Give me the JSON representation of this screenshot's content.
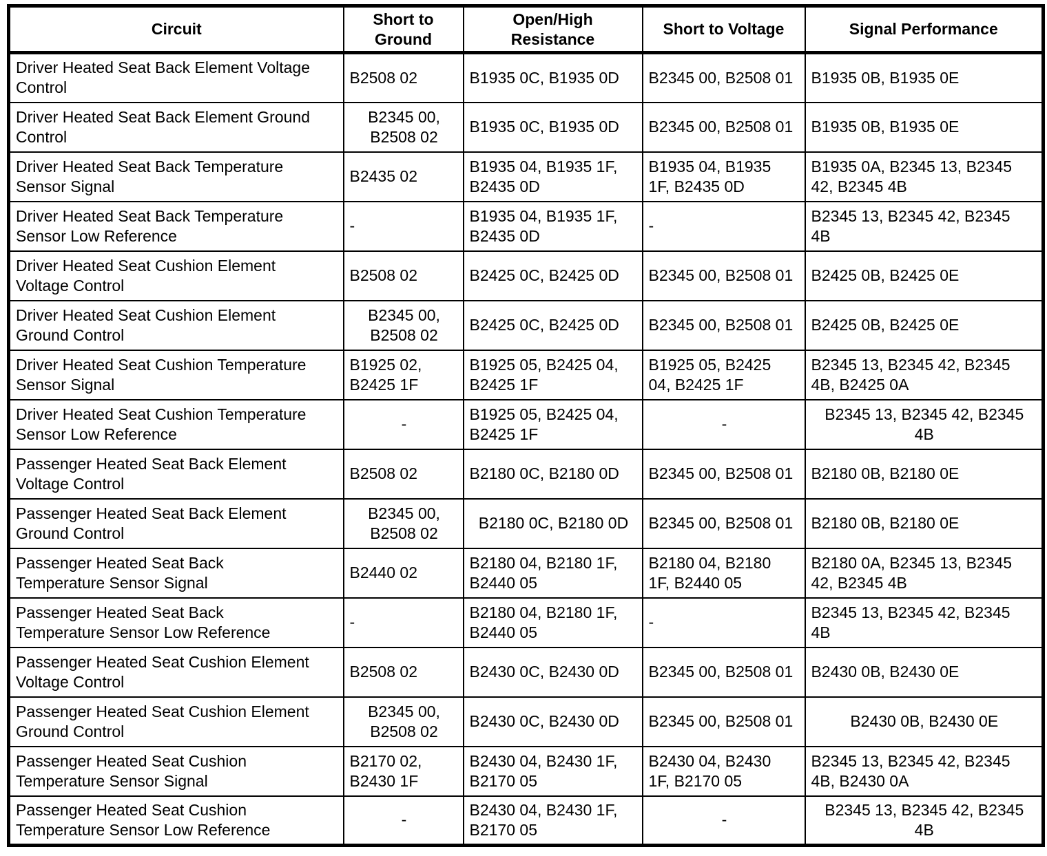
{
  "colors": {
    "background": "#ffffff",
    "border": "#000000",
    "text": "#000000"
  },
  "table": {
    "columns": [
      {
        "key": "circuit",
        "label": "Circuit"
      },
      {
        "key": "short_to_ground",
        "label": "Short to\nGround"
      },
      {
        "key": "open_high_resistance",
        "label": "Open/High\nResistance"
      },
      {
        "key": "short_to_voltage",
        "label": "Short to Voltage"
      },
      {
        "key": "signal_performance",
        "label": "Signal Performance"
      }
    ],
    "rows": [
      {
        "circuit": {
          "text": "Driver Heated Seat Back Element Voltage\nControl",
          "align": "left"
        },
        "short_to_ground": {
          "text": "B2508 02",
          "align": "left"
        },
        "open_high_resistance": {
          "text": "B1935 0C, B1935 0D",
          "align": "left"
        },
        "short_to_voltage": {
          "text": "B2345 00, B2508 01",
          "align": "left"
        },
        "signal_performance": {
          "text": "B1935 0B, B1935 0E",
          "align": "left"
        }
      },
      {
        "circuit": {
          "text": "Driver Heated Seat Back Element Ground\nControl",
          "align": "left"
        },
        "short_to_ground": {
          "text": "B2345 00,\nB2508 02",
          "align": "center"
        },
        "open_high_resistance": {
          "text": "B1935 0C, B1935 0D",
          "align": "left"
        },
        "short_to_voltage": {
          "text": "B2345 00, B2508 01",
          "align": "left"
        },
        "signal_performance": {
          "text": "B1935 0B, B1935 0E",
          "align": "left"
        }
      },
      {
        "circuit": {
          "text": "Driver Heated Seat Back Temperature\nSensor Signal",
          "align": "left"
        },
        "short_to_ground": {
          "text": "B2435 02",
          "align": "left"
        },
        "open_high_resistance": {
          "text": "B1935 04, B1935 1F,\nB2435 0D",
          "align": "left"
        },
        "short_to_voltage": {
          "text": "B1935 04, B1935\n1F, B2435 0D",
          "align": "left"
        },
        "signal_performance": {
          "text": "B1935 0A, B2345 13, B2345\n42, B2345 4B",
          "align": "left"
        }
      },
      {
        "circuit": {
          "text": "Driver Heated Seat Back Temperature\nSensor Low Reference",
          "align": "left"
        },
        "short_to_ground": {
          "text": "-",
          "align": "left"
        },
        "open_high_resistance": {
          "text": "B1935 04, B1935 1F,\nB2435 0D",
          "align": "left"
        },
        "short_to_voltage": {
          "text": "-",
          "align": "left"
        },
        "signal_performance": {
          "text": "B2345 13, B2345 42, B2345\n4B",
          "align": "left"
        }
      },
      {
        "circuit": {
          "text": "Driver Heated Seat Cushion Element\nVoltage Control",
          "align": "left"
        },
        "short_to_ground": {
          "text": "B2508 02",
          "align": "left"
        },
        "open_high_resistance": {
          "text": "B2425 0C, B2425 0D",
          "align": "left"
        },
        "short_to_voltage": {
          "text": "B2345 00, B2508 01",
          "align": "left"
        },
        "signal_performance": {
          "text": "B2425 0B, B2425 0E",
          "align": "left"
        }
      },
      {
        "circuit": {
          "text": "Driver Heated Seat Cushion Element\nGround Control",
          "align": "left"
        },
        "short_to_ground": {
          "text": "B2345 00,\nB2508 02",
          "align": "center"
        },
        "open_high_resistance": {
          "text": "B2425 0C, B2425 0D",
          "align": "left"
        },
        "short_to_voltage": {
          "text": "B2345 00, B2508 01",
          "align": "left"
        },
        "signal_performance": {
          "text": "B2425 0B, B2425 0E",
          "align": "left"
        }
      },
      {
        "circuit": {
          "text": "Driver Heated Seat Cushion Temperature\nSensor Signal",
          "align": "left"
        },
        "short_to_ground": {
          "text": "B1925 02,\nB2425 1F",
          "align": "left"
        },
        "open_high_resistance": {
          "text": "B1925 05, B2425 04,\nB2425 1F",
          "align": "left"
        },
        "short_to_voltage": {
          "text": "B1925 05, B2425\n04, B2425 1F",
          "align": "left"
        },
        "signal_performance": {
          "text": "B2345 13, B2345 42, B2345\n4B, B2425 0A",
          "align": "left"
        }
      },
      {
        "circuit": {
          "text": "Driver Heated Seat Cushion Temperature\nSensor Low Reference",
          "align": "left"
        },
        "short_to_ground": {
          "text": "-",
          "align": "center"
        },
        "open_high_resistance": {
          "text": "B1925 05, B2425 04,\nB2425 1F",
          "align": "left"
        },
        "short_to_voltage": {
          "text": "-",
          "align": "center"
        },
        "signal_performance": {
          "text": "B2345 13, B2345 42, B2345\n4B",
          "align": "center"
        }
      },
      {
        "circuit": {
          "text": "Passenger Heated Seat Back Element\nVoltage Control",
          "align": "left"
        },
        "short_to_ground": {
          "text": "B2508 02",
          "align": "left"
        },
        "open_high_resistance": {
          "text": "B2180 0C, B2180 0D",
          "align": "left"
        },
        "short_to_voltage": {
          "text": "B2345 00, B2508 01",
          "align": "left"
        },
        "signal_performance": {
          "text": "B2180 0B, B2180 0E",
          "align": "left"
        }
      },
      {
        "circuit": {
          "text": "Passenger Heated Seat Back Element\nGround Control",
          "align": "left"
        },
        "short_to_ground": {
          "text": "B2345 00,\nB2508 02",
          "align": "center"
        },
        "open_high_resistance": {
          "text": "B2180 0C, B2180 0D",
          "align": "center"
        },
        "short_to_voltage": {
          "text": "B2345 00, B2508 01",
          "align": "left"
        },
        "signal_performance": {
          "text": "B2180 0B, B2180 0E",
          "align": "left"
        }
      },
      {
        "circuit": {
          "text": "Passenger Heated Seat Back\nTemperature Sensor Signal",
          "align": "left"
        },
        "short_to_ground": {
          "text": "B2440 02",
          "align": "left"
        },
        "open_high_resistance": {
          "text": "B2180 04, B2180 1F,\nB2440 05",
          "align": "left"
        },
        "short_to_voltage": {
          "text": "B2180 04, B2180\n1F, B2440 05",
          "align": "left"
        },
        "signal_performance": {
          "text": "B2180 0A, B2345 13, B2345\n42, B2345 4B",
          "align": "left"
        }
      },
      {
        "circuit": {
          "text": "Passenger Heated Seat Back\nTemperature Sensor Low Reference",
          "align": "left"
        },
        "short_to_ground": {
          "text": "-",
          "align": "left"
        },
        "open_high_resistance": {
          "text": "B2180 04, B2180 1F,\nB2440 05",
          "align": "left"
        },
        "short_to_voltage": {
          "text": "-",
          "align": "left"
        },
        "signal_performance": {
          "text": "B2345 13, B2345 42, B2345\n4B",
          "align": "left"
        }
      },
      {
        "circuit": {
          "text": "Passenger Heated Seat Cushion Element\nVoltage Control",
          "align": "left"
        },
        "short_to_ground": {
          "text": "B2508 02",
          "align": "left"
        },
        "open_high_resistance": {
          "text": "B2430 0C, B2430 0D",
          "align": "left"
        },
        "short_to_voltage": {
          "text": "B2345 00, B2508 01",
          "align": "left"
        },
        "signal_performance": {
          "text": "B2430 0B, B2430 0E",
          "align": "left"
        }
      },
      {
        "circuit": {
          "text": "Passenger Heated Seat Cushion Element\nGround Control",
          "align": "left"
        },
        "short_to_ground": {
          "text": "B2345 00,\nB2508 02",
          "align": "center"
        },
        "open_high_resistance": {
          "text": "B2430 0C, B2430 0D",
          "align": "left"
        },
        "short_to_voltage": {
          "text": "B2345 00, B2508 01",
          "align": "left"
        },
        "signal_performance": {
          "text": "B2430 0B, B2430 0E",
          "align": "center"
        }
      },
      {
        "circuit": {
          "text": "Passenger Heated Seat Cushion\nTemperature Sensor Signal",
          "align": "left"
        },
        "short_to_ground": {
          "text": "B2170 02,\nB2430 1F",
          "align": "left"
        },
        "open_high_resistance": {
          "text": "B2430 04, B2430 1F,\nB2170 05",
          "align": "left"
        },
        "short_to_voltage": {
          "text": "B2430 04, B2430\n1F, B2170 05",
          "align": "left"
        },
        "signal_performance": {
          "text": "B2345 13, B2345 42, B2345\n4B, B2430 0A",
          "align": "left"
        }
      },
      {
        "circuit": {
          "text": "Passenger Heated Seat Cushion\nTemperature Sensor Low Reference",
          "align": "left"
        },
        "short_to_ground": {
          "text": "-",
          "align": "center"
        },
        "open_high_resistance": {
          "text": "B2430 04, B2430 1F,\nB2170 05",
          "align": "left"
        },
        "short_to_voltage": {
          "text": "-",
          "align": "center"
        },
        "signal_performance": {
          "text": "B2345 13, B2345 42, B2345\n4B",
          "align": "center"
        }
      }
    ]
  }
}
